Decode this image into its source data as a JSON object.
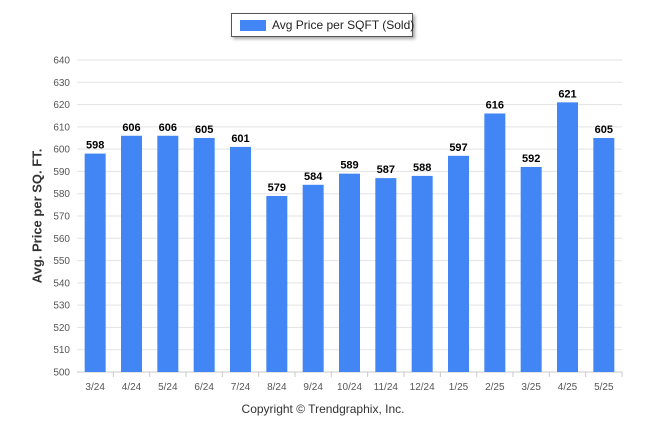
{
  "chart_data": {
    "type": "bar",
    "categories": [
      "3/24",
      "4/24",
      "5/24",
      "6/24",
      "7/24",
      "8/24",
      "9/24",
      "10/24",
      "11/24",
      "12/24",
      "1/25",
      "2/25",
      "3/25",
      "4/25",
      "5/25"
    ],
    "series": [
      {
        "name": "Avg Price per SQFT (Sold)",
        "values": [
          598,
          606,
          606,
          605,
          601,
          579,
          584,
          589,
          587,
          588,
          597,
          616,
          592,
          621,
          605
        ]
      }
    ],
    "ylabel": "Avg. Price per SQ. FT.",
    "ylim": [
      500,
      640
    ],
    "yticks": [
      500,
      510,
      520,
      530,
      540,
      550,
      560,
      570,
      580,
      590,
      600,
      610,
      620,
      630,
      640
    ],
    "grid": true,
    "legend_position": "top-center",
    "data_labels": true
  },
  "colors": {
    "bar": "#4285f4",
    "grid": "#e3e3e3",
    "axis_text": "#555555",
    "label_text": "#000000"
  },
  "footer": {
    "copyright": "Copyright © Trendgraphix, Inc."
  }
}
